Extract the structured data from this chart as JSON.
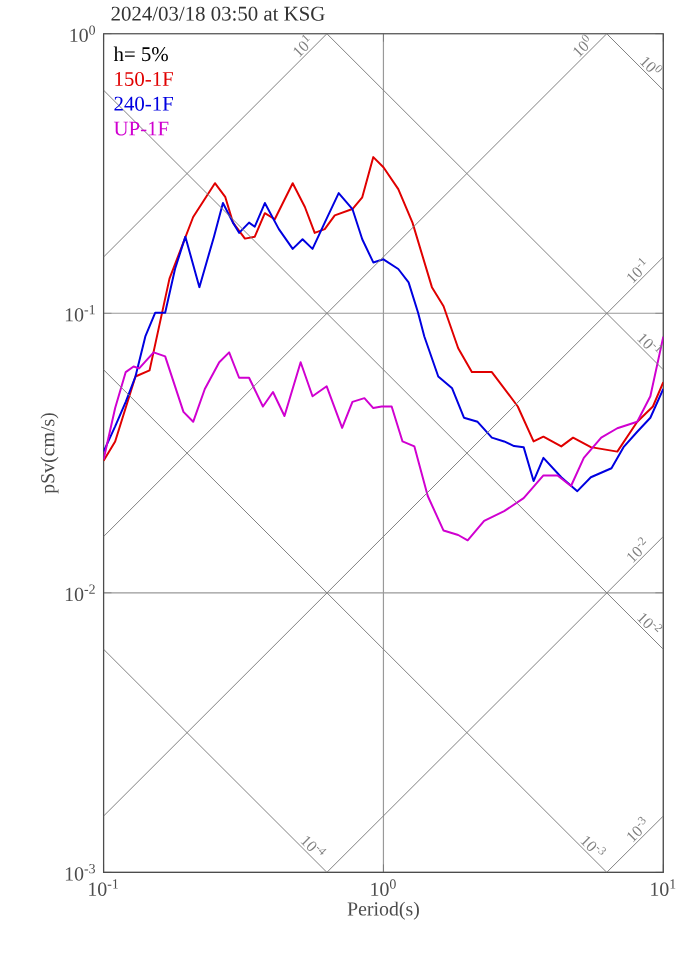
{
  "chart_data": {
    "type": "line",
    "title": "2024/03/18 03:50 at KSG",
    "xlabel": "Period(s)",
    "ylabel": "pSv(cm/s)",
    "log": "xy",
    "grid": true,
    "legend": "top left",
    "annotations": [
      "h= 5%"
    ],
    "xlim": [
      0.1,
      10
    ],
    "ylim": [
      0.001,
      1
    ],
    "xticks": [
      {
        "value": 0.1,
        "label": "10$^{-1}$"
      },
      {
        "value": 1,
        "label": "10$^{0}$"
      },
      {
        "value": 10,
        "label": "10$^{1}$"
      }
    ],
    "yticks": [
      {
        "value": 0.001,
        "label": "10$^{-3}$"
      },
      {
        "value": 0.01,
        "label": "10$^{-2}$"
      },
      {
        "value": 0.1,
        "label": "10$^{-1}$"
      },
      {
        "value": 1,
        "label": "10$^{0}$"
      }
    ],
    "series": [
      {
        "name": "150-1F",
        "color": "#e00000",
        "x": [
          0.1,
          0.11,
          0.13,
          0.146,
          0.172,
          0.209,
          0.25,
          0.272,
          0.29,
          0.32,
          0.347,
          0.377,
          0.409,
          0.474,
          0.524,
          0.568,
          0.617,
          0.67,
          0.775,
          0.84,
          0.92,
          1.0,
          1.13,
          1.27,
          1.49,
          1.64,
          1.85,
          2.07,
          2.44,
          2.7,
          3.02,
          3.44,
          3.73,
          4.32,
          4.76,
          5.51,
          6.85,
          8.07,
          9.18,
          10
        ],
        "values": [
          0.0297,
          0.0348,
          0.0594,
          0.0625,
          0.133,
          0.221,
          0.292,
          0.261,
          0.211,
          0.185,
          0.188,
          0.228,
          0.217,
          0.292,
          0.24,
          0.194,
          0.2,
          0.224,
          0.236,
          0.26,
          0.362,
          0.333,
          0.278,
          0.211,
          0.124,
          0.106,
          0.075,
          0.0616,
          0.0616,
          0.0539,
          0.0464,
          0.0348,
          0.0362,
          0.0334,
          0.0359,
          0.0332,
          0.032,
          0.0409,
          0.0464,
          0.0567
        ]
      },
      {
        "name": "240-1F",
        "color": "#0000e0",
        "x": [
          0.1,
          0.11,
          0.12,
          0.13,
          0.141,
          0.153,
          0.166,
          0.18,
          0.196,
          0.22,
          0.248,
          0.267,
          0.29,
          0.305,
          0.331,
          0.347,
          0.377,
          0.423,
          0.474,
          0.514,
          0.558,
          0.617,
          0.692,
          0.775,
          0.84,
          0.92,
          1.0,
          1.13,
          1.23,
          1.33,
          1.4,
          1.57,
          1.76,
          1.94,
          2.17,
          2.44,
          2.7,
          2.93,
          3.17,
          3.44,
          3.73,
          4.32,
          4.93,
          5.51,
          6.53,
          7.21,
          8.07,
          8.99,
          10
        ],
        "values": [
          0.032,
          0.0394,
          0.0482,
          0.0594,
          0.0826,
          0.1005,
          0.1005,
          0.144,
          0.188,
          0.124,
          0.188,
          0.248,
          0.211,
          0.194,
          0.211,
          0.204,
          0.248,
          0.2,
          0.17,
          0.184,
          0.17,
          0.211,
          0.269,
          0.236,
          0.184,
          0.152,
          0.156,
          0.144,
          0.129,
          0.1005,
          0.0826,
          0.0594,
          0.0539,
          0.0423,
          0.0409,
          0.0359,
          0.0348,
          0.0335,
          0.0332,
          0.0251,
          0.0304,
          0.0259,
          0.0231,
          0.0259,
          0.0279,
          0.0332,
          0.0377,
          0.0423,
          0.0536
        ]
      },
      {
        "name": "UP-1F",
        "color": "#d000d0",
        "x": [
          0.1,
          0.11,
          0.12,
          0.128,
          0.134,
          0.151,
          0.166,
          0.193,
          0.209,
          0.23,
          0.259,
          0.281,
          0.305,
          0.331,
          0.371,
          0.403,
          0.443,
          0.506,
          0.558,
          0.627,
          0.712,
          0.775,
          0.855,
          0.92,
          0.985,
          1.07,
          1.17,
          1.29,
          1.44,
          1.64,
          1.85,
          2.0,
          2.29,
          2.7,
          3.17,
          3.73,
          4.19,
          4.68,
          5.2,
          6.0,
          6.85,
          8.07,
          8.99,
          10
        ],
        "values": [
          0.03,
          0.0458,
          0.0616,
          0.0645,
          0.0635,
          0.0725,
          0.0701,
          0.0444,
          0.0409,
          0.0536,
          0.0668,
          0.0725,
          0.0588,
          0.0588,
          0.0464,
          0.0523,
          0.0429,
          0.0668,
          0.0505,
          0.0548,
          0.0389,
          0.0482,
          0.0497,
          0.0458,
          0.0464,
          0.0464,
          0.0348,
          0.0334,
          0.0222,
          0.0167,
          0.0161,
          0.0154,
          0.0181,
          0.0196,
          0.0218,
          0.0263,
          0.0263,
          0.0241,
          0.0304,
          0.0359,
          0.0388,
          0.0409,
          0.0505,
          0.0825
        ]
      },
      {
        "name": "10$^{1}$",
        "color": "#808080",
        "x": [
          0.1,
          0.628
        ],
        "values": [
          0.159,
          1
        ]
      },
      {
        "name": "10$^{0}$",
        "color": "#808080",
        "x": [
          0.1,
          6.28
        ],
        "values": [
          0.0159,
          1
        ]
      },
      {
        "name": "10$^{-1}$",
        "color": "#808080",
        "x": [
          0.1,
          10
        ],
        "values": [
          0.00159,
          0.159
        ]
      },
      {
        "name": "10$^{-2}$",
        "color": "#808080",
        "x": [
          0.628,
          10
        ],
        "values": [
          0.001,
          0.0159
        ]
      },
      {
        "name": "10$^{-3}$",
        "color": "#808080",
        "x": [
          6.28,
          10
        ],
        "values": [
          0.001,
          0.00159
        ]
      },
      {
        "name": "10$^{0}$",
        "color": "#808080",
        "x": [
          6.28,
          10
        ],
        "values": [
          1,
          0.628
        ]
      },
      {
        "name": "10$^{-1}$",
        "color": "#808080",
        "x": [
          0.628,
          10
        ],
        "values": [
          1,
          0.0628
        ]
      },
      {
        "name": "10$^{-2}$",
        "color": "#808080",
        "x": [
          0.1,
          10
        ],
        "values": [
          0.628,
          0.00628
        ]
      },
      {
        "name": "10$^{-3}$",
        "color": "#808080",
        "x": [
          0.1,
          6.28
        ],
        "values": [
          0.0628,
          0.001
        ]
      },
      {
        "name": "10$^{-4}$",
        "color": "#808080",
        "x": [
          0.1,
          0.628
        ],
        "values": [
          0.00628,
          0.001
        ]
      }
    ]
  }
}
